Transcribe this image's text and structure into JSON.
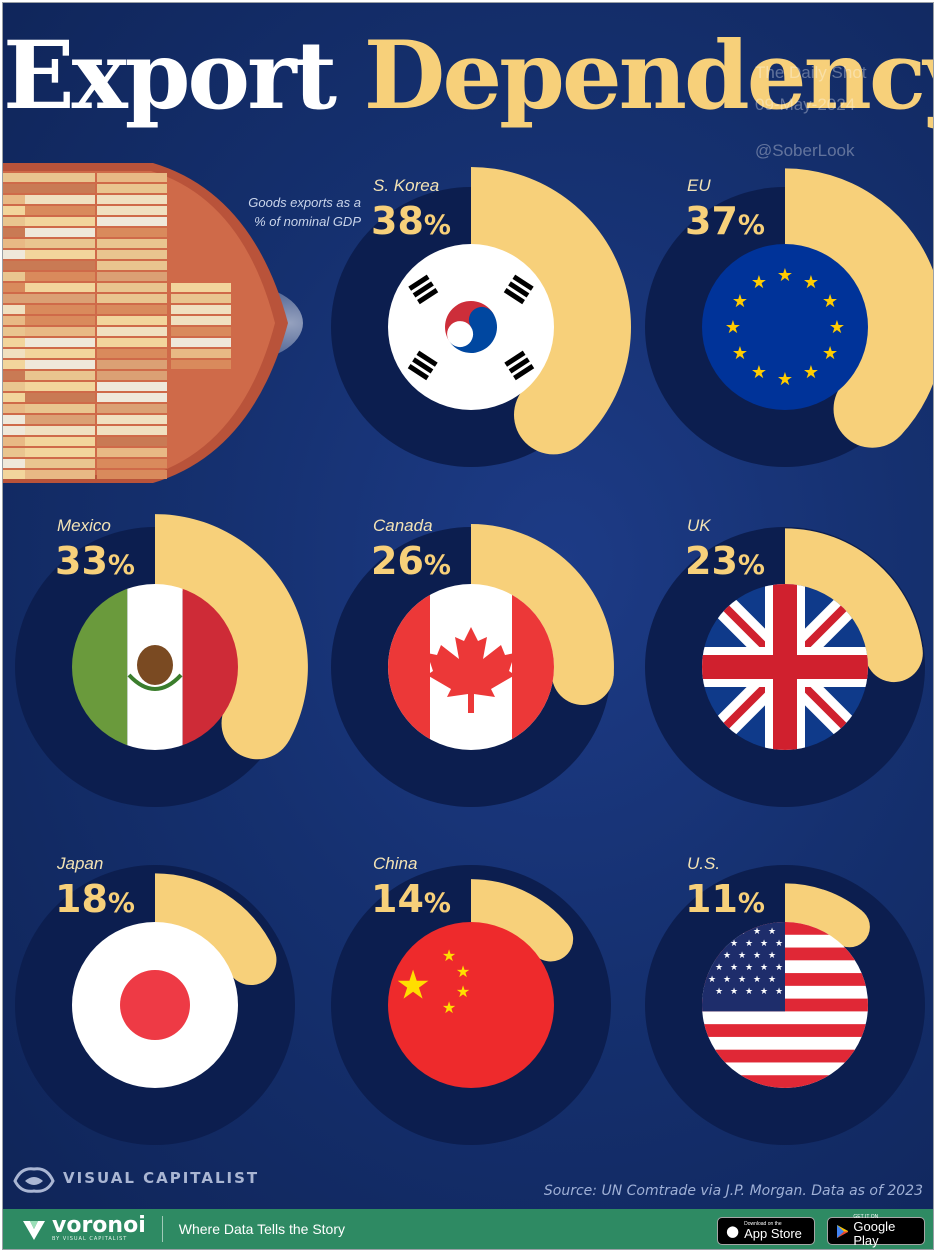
{
  "header": {
    "title_part1": "Export",
    "title_part2": "Dependency",
    "watermark": [
      "The Daily Shot",
      "09-May-2024",
      "@SoberLook"
    ]
  },
  "subtitle": [
    "Goods exports as a",
    "% of nominal GDP"
  ],
  "chart_data": {
    "type": "radial-bar",
    "title": "Export Dependency",
    "subtitle": "Goods exports as a % of nominal GDP",
    "unit": "%",
    "categories": [
      "S. Korea",
      "EU",
      "Mexico",
      "Canada",
      "UK",
      "Japan",
      "China",
      "U.S."
    ],
    "values": [
      38,
      37,
      33,
      26,
      23,
      18,
      14,
      11
    ],
    "value_labels": [
      "38",
      "37",
      "33",
      "26",
      "23",
      "18",
      "14",
      "11"
    ],
    "flags": [
      "south-korea-flag",
      "eu-flag",
      "mexico-flag",
      "canada-flag",
      "uk-flag",
      "japan-flag",
      "china-flag",
      "us-flag"
    ],
    "bar_color": "#f7d07a",
    "track_color": "#0c1e4f"
  },
  "branding": {
    "logo": "VISUAL CAPITALIST",
    "source": "Source: UN Comtrade via J.P. Morgan. Data as of 2023"
  },
  "footer": {
    "brand": "voronoi",
    "brand_sub": "BY VISUAL CAPITALIST",
    "tagline": "Where Data Tells the Story",
    "app_store_small": "Download on the",
    "app_store": "App Store",
    "google_play_small": "GET IT ON",
    "google_play": "Google Play",
    "footer_color": "#2e8a63"
  }
}
